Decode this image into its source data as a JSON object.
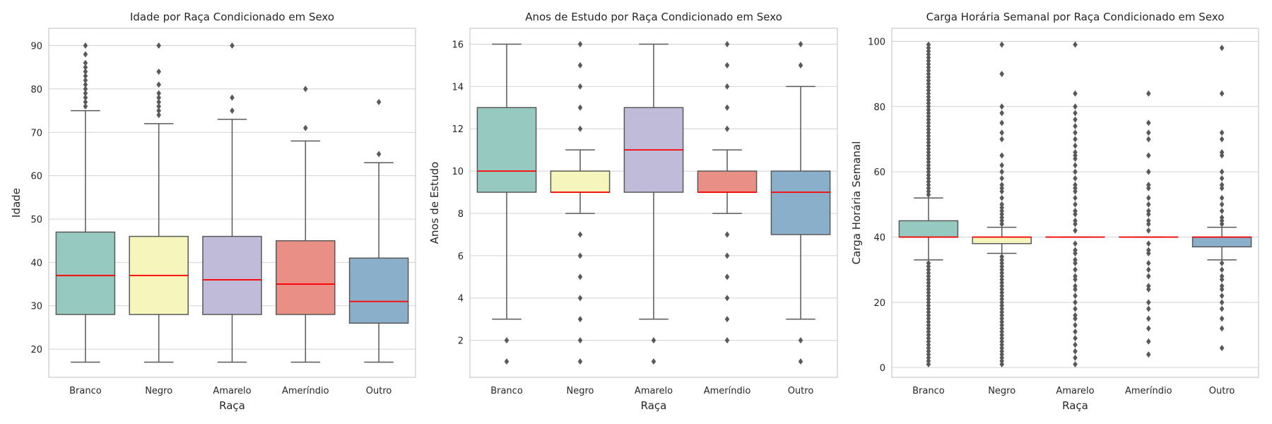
{
  "chart_data": [
    {
      "type": "box",
      "title": "Idade por Raça Condicionado em Sexo",
      "xlabel": "Raça",
      "ylabel": "Idade",
      "categories": [
        "Branco",
        "Negro",
        "Amarelo",
        "Ameríndio",
        "Outro"
      ],
      "ylim": [
        13.5,
        94.0
      ],
      "yticks": [
        20,
        30,
        40,
        50,
        60,
        70,
        80,
        90
      ],
      "grid": "y",
      "boxes": [
        {
          "whislo": 17,
          "q1": 28,
          "med": 37,
          "q3": 47,
          "whishi": 75,
          "fliers": [
            76,
            77,
            78,
            79,
            80,
            81,
            82,
            83,
            84,
            85,
            86,
            88,
            90
          ]
        },
        {
          "whislo": 17,
          "q1": 28,
          "med": 37,
          "q3": 46,
          "whishi": 72,
          "fliers": [
            74,
            75,
            76,
            77,
            78,
            79,
            81,
            84,
            90
          ]
        },
        {
          "whislo": 17,
          "q1": 28,
          "med": 36,
          "q3": 46,
          "whishi": 73,
          "fliers": [
            75,
            78,
            90
          ]
        },
        {
          "whislo": 17,
          "q1": 28,
          "med": 35,
          "q3": 45,
          "whishi": 68,
          "fliers": [
            71,
            80
          ]
        },
        {
          "whislo": 17,
          "q1": 26,
          "med": 31,
          "q3": 41,
          "whishi": 63,
          "fliers": [
            65,
            77
          ]
        }
      ]
    },
    {
      "type": "box",
      "title": "Anos de Estudo por Raça Condicionado em Sexo",
      "xlabel": "Raça",
      "ylabel": "Anos de Estudo",
      "categories": [
        "Branco",
        "Negro",
        "Amarelo",
        "Ameríndio",
        "Outro"
      ],
      "ylim": [
        0.25,
        16.75
      ],
      "yticks": [
        2,
        4,
        6,
        8,
        10,
        12,
        14,
        16
      ],
      "grid": "y",
      "boxes": [
        {
          "whislo": 3,
          "q1": 9,
          "med": 10,
          "q3": 13,
          "whishi": 16,
          "fliers": [
            1,
            2
          ]
        },
        {
          "whislo": 8,
          "q1": 9,
          "med": 9,
          "q3": 10,
          "whishi": 11,
          "fliers": [
            1,
            2,
            3,
            4,
            5,
            6,
            7,
            12,
            13,
            14,
            15,
            16
          ]
        },
        {
          "whislo": 3,
          "q1": 9,
          "med": 11,
          "q3": 13,
          "whishi": 16,
          "fliers": [
            1,
            2
          ]
        },
        {
          "whislo": 8,
          "q1": 9,
          "med": 9,
          "q3": 10,
          "whishi": 11,
          "fliers": [
            2,
            3,
            4,
            5,
            6,
            7,
            12,
            13,
            14,
            15,
            16
          ]
        },
        {
          "whislo": 3,
          "q1": 7,
          "med": 9,
          "q3": 10,
          "whishi": 14,
          "fliers": [
            1,
            2,
            15,
            16
          ]
        }
      ]
    },
    {
      "type": "box",
      "title": "Carga Horária Semanal por Raça Condicionado em Sexo",
      "xlabel": "Raça",
      "ylabel": "Carga Horária Semanal",
      "categories": [
        "Branco",
        "Negro",
        "Amarelo",
        "Ameríndio",
        "Outro"
      ],
      "ylim": [
        -3.0,
        104.0
      ],
      "yticks": [
        0,
        20,
        40,
        60,
        80,
        100
      ],
      "grid": "y",
      "boxes": [
        {
          "whislo": 33,
          "q1": 40,
          "med": 40,
          "q3": 45,
          "whishi": 52,
          "fliers": [
            1,
            2,
            3,
            4,
            5,
            6,
            7,
            8,
            9,
            10,
            11,
            12,
            13,
            14,
            15,
            16,
            17,
            18,
            19,
            20,
            21,
            22,
            23,
            24,
            25,
            26,
            27,
            28,
            29,
            30,
            31,
            32,
            53,
            54,
            55,
            56,
            57,
            58,
            59,
            60,
            61,
            62,
            63,
            64,
            65,
            66,
            67,
            68,
            69,
            70,
            71,
            72,
            73,
            74,
            75,
            76,
            77,
            78,
            79,
            80,
            81,
            82,
            83,
            84,
            85,
            86,
            87,
            88,
            89,
            90,
            91,
            92,
            93,
            94,
            95,
            96,
            97,
            98,
            99
          ]
        },
        {
          "whislo": 35,
          "q1": 38,
          "med": 40,
          "q3": 40,
          "whishi": 43,
          "fliers": [
            1,
            2,
            3,
            4,
            5,
            6,
            7,
            8,
            9,
            10,
            11,
            12,
            13,
            14,
            15,
            16,
            17,
            18,
            19,
            20,
            21,
            22,
            23,
            24,
            25,
            26,
            27,
            28,
            29,
            30,
            31,
            32,
            33,
            34,
            44,
            45,
            46,
            47,
            48,
            49,
            50,
            52,
            54,
            55,
            56,
            58,
            60,
            62,
            65,
            70,
            72,
            75,
            78,
            80,
            90,
            99
          ]
        },
        {
          "whislo": 40,
          "q1": 40,
          "med": 40,
          "q3": 40,
          "whishi": 40,
          "fliers": [
            1,
            3,
            5,
            7,
            9,
            11,
            13,
            15,
            16,
            18,
            20,
            22,
            24,
            25,
            27,
            28,
            30,
            32,
            33,
            35,
            36,
            38,
            42,
            44,
            45,
            47,
            48,
            50,
            52,
            54,
            55,
            56,
            58,
            60,
            62,
            64,
            65,
            66,
            68,
            70,
            72,
            74,
            76,
            78,
            80,
            84,
            99
          ]
        },
        {
          "whislo": 40,
          "q1": 40,
          "med": 40,
          "q3": 40,
          "whishi": 40,
          "fliers": [
            4,
            8,
            12,
            15,
            18,
            20,
            24,
            25,
            28,
            30,
            32,
            35,
            36,
            38,
            42,
            44,
            45,
            47,
            48,
            50,
            52,
            55,
            56,
            60,
            65,
            70,
            72,
            75,
            84
          ]
        },
        {
          "whislo": 33,
          "q1": 37,
          "med": 40,
          "q3": 40,
          "whishi": 43,
          "fliers": [
            6,
            12,
            15,
            18,
            20,
            22,
            24,
            25,
            27,
            28,
            30,
            32,
            44,
            45,
            46,
            48,
            50,
            52,
            55,
            56,
            58,
            60,
            65,
            66,
            70,
            72,
            84,
            98
          ]
        }
      ]
    }
  ],
  "colors": {
    "palette": [
      "#96cac1",
      "#f6f6bc",
      "#bfbbd9",
      "#ea8f86",
      "#8aafca"
    ],
    "median": "#ff0000",
    "line": "#595959",
    "grid": "#d3d3d3",
    "spine": "#cccccc"
  }
}
